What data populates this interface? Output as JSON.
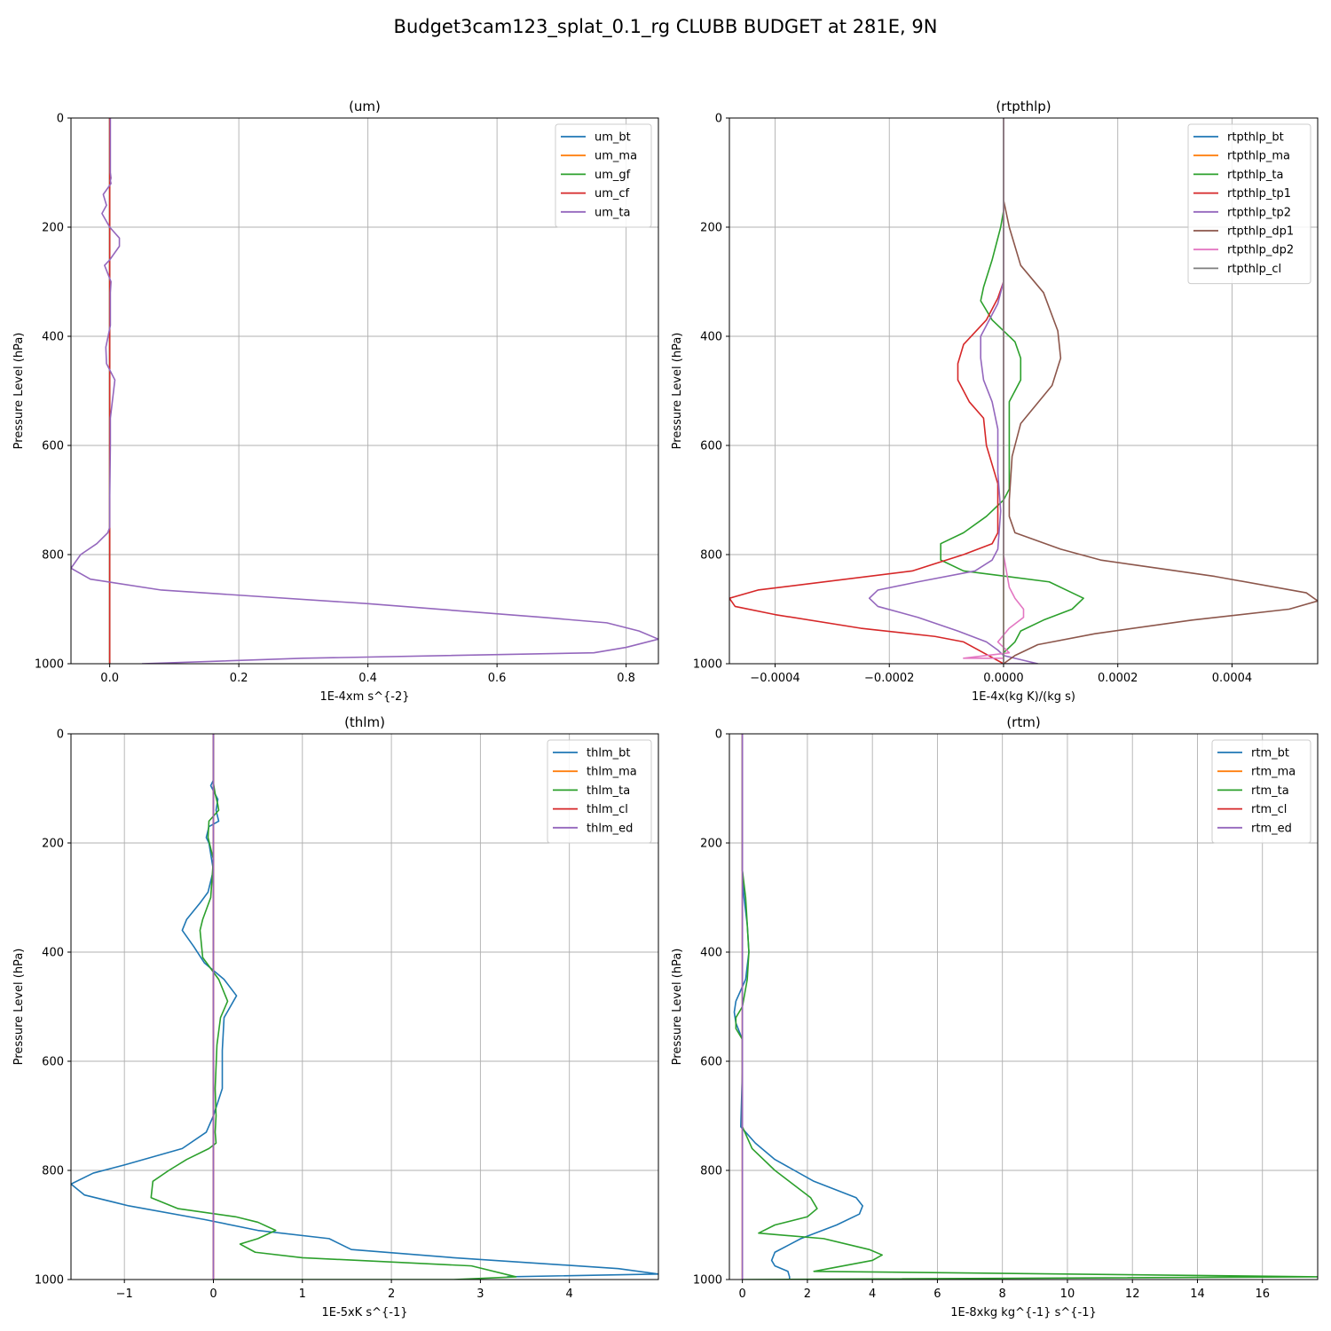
{
  "figure": {
    "title": "Budget3cam123_splat_0.1_rg CLUBB BUDGET at 281E, 9N"
  },
  "chart_data": [
    {
      "type": "line",
      "title": "(um)",
      "xlabel": "1E-4xm s^{-2}",
      "ylabel": "Pressure Level (hPa)",
      "xlim": [
        -0.06,
        0.85
      ],
      "ylim": [
        1000,
        0
      ],
      "xticks": [
        0.0,
        0.2,
        0.4,
        0.6,
        0.8
      ],
      "xtick_labels": [
        "0.0",
        "0.2",
        "0.4",
        "0.6",
        "0.8"
      ],
      "yticks": [
        0,
        200,
        400,
        600,
        800,
        1000
      ],
      "ytick_labels": [
        "0",
        "200",
        "400",
        "600",
        "800",
        "1000"
      ],
      "grid": true,
      "legend_position": "top-right",
      "series": [
        {
          "name": "um_bt",
          "color": "#1f77b4",
          "x": [
            0,
            0
          ],
          "y": [
            0,
            1000
          ]
        },
        {
          "name": "um_ma",
          "color": "#ff7f0e",
          "x": [
            0,
            0
          ],
          "y": [
            0,
            1000
          ]
        },
        {
          "name": "um_gf",
          "color": "#2ca02c",
          "x": [
            0,
            0
          ],
          "y": [
            0,
            1000
          ]
        },
        {
          "name": "um_cf",
          "color": "#d62728",
          "x": [
            0,
            0
          ],
          "y": [
            0,
            1000
          ]
        },
        {
          "name": "um_ta",
          "color": "#9467bd",
          "x": [
            0.001,
            0.001,
            0.001,
            0.002,
            0.001,
            0.002,
            -0.01,
            -0.005,
            -0.012,
            0.0,
            0.015,
            0.015,
            0.0,
            -0.008,
            0.002,
            0.001,
            0.001,
            -0.006,
            -0.005,
            0.008,
            0.001,
            0.001,
            0.0,
            0.0,
            -0.003,
            -0.02,
            -0.045,
            -0.06,
            -0.03,
            0.08,
            0.4,
            0.67,
            0.77,
            0.82,
            0.85,
            0.8,
            0.75,
            0.3,
            0.05
          ],
          "y": [
            0,
            50,
            100,
            110,
            115,
            120,
            140,
            160,
            175,
            200,
            220,
            235,
            260,
            270,
            300,
            320,
            380,
            420,
            450,
            480,
            550,
            600,
            700,
            750,
            760,
            780,
            800,
            825,
            845,
            865,
            890,
            915,
            925,
            940,
            955,
            970,
            980,
            990,
            1000
          ]
        }
      ]
    },
    {
      "type": "line",
      "title": "(rtpthlp)",
      "xlabel": "1E-4x(kg K)/(kg s)",
      "ylabel": "Pressure Level (hPa)",
      "xlim": [
        -0.00048,
        0.00055
      ],
      "ylim": [
        1000,
        0
      ],
      "xticks": [
        -0.0004,
        -0.0002,
        0.0,
        0.0002,
        0.0004
      ],
      "xtick_labels": [
        "−0.0004",
        "−0.0002",
        "0.0000",
        "0.0002",
        "0.0004"
      ],
      "yticks": [
        0,
        200,
        400,
        600,
        800,
        1000
      ],
      "ytick_labels": [
        "0",
        "200",
        "400",
        "600",
        "800",
        "1000"
      ],
      "grid": true,
      "legend_position": "top-right",
      "series": [
        {
          "name": "rtpthlp_bt",
          "color": "#1f77b4",
          "x": [
            0,
            0
          ],
          "y": [
            0,
            1000
          ]
        },
        {
          "name": "rtpthlp_ma",
          "color": "#ff7f0e",
          "x": [
            0,
            0
          ],
          "y": [
            0,
            1000
          ]
        },
        {
          "name": "rtpthlp_ta",
          "color": "#2ca02c",
          "x": [
            0,
            0,
            -5e-06,
            -2e-05,
            -3.5e-05,
            -4e-05,
            -2e-05,
            2e-05,
            3e-05,
            3e-05,
            1e-05,
            1e-05,
            1e-05,
            0.0,
            -3e-05,
            -7e-05,
            -0.00011,
            -0.00011,
            -7e-05,
            8e-05,
            0.00012,
            0.00014,
            0.00012,
            7e-05,
            3e-05,
            2e-05,
            0.0,
            0.0
          ],
          "y": [
            0,
            170,
            200,
            260,
            310,
            335,
            370,
            410,
            440,
            480,
            520,
            600,
            680,
            700,
            730,
            760,
            780,
            810,
            830,
            850,
            870,
            880,
            900,
            920,
            940,
            960,
            980,
            1000
          ]
        },
        {
          "name": "rtpthlp_tp1",
          "color": "#d62728",
          "x": [
            0,
            0,
            -1e-05,
            -3e-05,
            -7e-05,
            -8e-05,
            -8e-05,
            -6e-05,
            -3.5e-05,
            -3e-05,
            -1e-05,
            -1e-05,
            -1e-05,
            -2e-05,
            -7e-05,
            -0.00016,
            -0.00043,
            -0.00048,
            -0.00047,
            -0.0004,
            -0.00025,
            -0.00012,
            -7e-05,
            0.0
          ],
          "y": [
            0,
            300,
            330,
            370,
            415,
            450,
            480,
            520,
            550,
            600,
            670,
            730,
            760,
            780,
            800,
            830,
            865,
            880,
            895,
            910,
            935,
            950,
            960,
            1000
          ]
        },
        {
          "name": "rtpthlp_tp2",
          "color": "#9467bd",
          "x": [
            0,
            0,
            -1e-05,
            -3e-05,
            -4e-05,
            -4e-05,
            -3.5e-05,
            -2e-05,
            -1e-05,
            -1e-05,
            -5e-06,
            -1e-05,
            -2e-05,
            -5e-05,
            -0.00015,
            -0.00022,
            -0.000235,
            -0.00022,
            -0.00015,
            -8e-05,
            -3e-05,
            -1e-05,
            0.0,
            6e-05,
            0.0
          ],
          "y": [
            0,
            300,
            340,
            380,
            400,
            440,
            480,
            520,
            570,
            650,
            720,
            790,
            810,
            830,
            850,
            865,
            880,
            895,
            915,
            940,
            960,
            975,
            985,
            1000,
            1000
          ]
        },
        {
          "name": "rtpthlp_dp1",
          "color": "#8c564b",
          "x": [
            0,
            0,
            1e-05,
            3e-05,
            7e-05,
            9.5e-05,
            0.0001,
            8.5e-05,
            3e-05,
            1.5e-05,
            1e-05,
            1e-05,
            2e-05,
            0.0001,
            0.00017,
            0.00037,
            0.00053,
            0.00055,
            0.0005,
            0.00033,
            0.00016,
            6e-05,
            2e-05,
            0.0
          ],
          "y": [
            0,
            150,
            200,
            270,
            320,
            390,
            440,
            490,
            560,
            620,
            700,
            730,
            760,
            790,
            810,
            840,
            870,
            885,
            900,
            920,
            945,
            965,
            985,
            1000
          ]
        },
        {
          "name": "rtpthlp_dp2",
          "color": "#e377c2",
          "x": [
            0,
            0,
            5e-06,
            1e-05,
            2e-05,
            3.5e-05,
            3.5e-05,
            1e-05,
            -1e-05,
            1e-05,
            -7e-05,
            0.0,
            0.0
          ],
          "y": [
            0,
            800,
            830,
            860,
            880,
            900,
            915,
            935,
            960,
            980,
            990,
            990,
            1000
          ]
        },
        {
          "name": "rtpthlp_cl",
          "color": "#7f7f7f",
          "x": [
            0,
            0
          ],
          "y": [
            0,
            1000
          ]
        }
      ]
    },
    {
      "type": "line",
      "title": "(thlm)",
      "xlabel": "1E-5xK s^{-1}",
      "ylabel": "Pressure Level (hPa)",
      "xlim": [
        -1.6,
        5.0
      ],
      "ylim": [
        1000,
        0
      ],
      "xticks": [
        -1,
        0,
        1,
        2,
        3,
        4
      ],
      "xtick_labels": [
        "−1",
        "0",
        "1",
        "2",
        "3",
        "4"
      ],
      "yticks": [
        0,
        200,
        400,
        600,
        800,
        1000
      ],
      "ytick_labels": [
        "0",
        "200",
        "400",
        "600",
        "800",
        "1000"
      ],
      "grid": true,
      "legend_position": "top-right",
      "series": [
        {
          "name": "thlm_bt",
          "color": "#1f77b4",
          "x": [
            0,
            0,
            -0.03,
            0.05,
            0.03,
            0.06,
            -0.05,
            -0.08,
            -0.05,
            0.0,
            -0.06,
            -0.15,
            -0.3,
            -0.35,
            -0.22,
            -0.1,
            0.12,
            0.26,
            0.12,
            0.1,
            0.1,
            0.0,
            -0.08,
            -0.35,
            -1.0,
            -1.35,
            -1.6,
            -1.45,
            -0.95,
            -0.1,
            0.5,
            1.3,
            1.55,
            2.7,
            4.55,
            5.0,
            3.3
          ],
          "y": [
            0,
            85,
            95,
            120,
            140,
            160,
            170,
            190,
            200,
            250,
            290,
            310,
            340,
            360,
            390,
            420,
            450,
            480,
            520,
            580,
            650,
            700,
            730,
            760,
            790,
            805,
            825,
            845,
            865,
            890,
            910,
            925,
            945,
            960,
            980,
            990,
            995
          ]
        },
        {
          "name": "thlm_ma",
          "color": "#ff7f0e",
          "x": [
            0,
            0
          ],
          "y": [
            0,
            1000
          ]
        },
        {
          "name": "thlm_ta",
          "color": "#2ca02c",
          "x": [
            0,
            0,
            0.02,
            0.05,
            0.06,
            -0.05,
            -0.06,
            0.0,
            -0.03,
            -0.12,
            -0.15,
            -0.12,
            0.06,
            0.16,
            0.08,
            0.04,
            0.02,
            0.03,
            0.02,
            0.03,
            -0.05,
            -0.3,
            -0.5,
            -0.68,
            -0.7,
            -0.4,
            0.25,
            0.5,
            0.7,
            0.5,
            0.3,
            0.47,
            1.0,
            2.9,
            3.4,
            2.7,
            0.0
          ],
          "y": [
            0,
            90,
            110,
            130,
            140,
            160,
            190,
            230,
            300,
            340,
            360,
            410,
            450,
            490,
            520,
            570,
            650,
            700,
            730,
            750,
            760,
            780,
            800,
            820,
            850,
            870,
            885,
            895,
            910,
            925,
            935,
            950,
            960,
            975,
            995,
            1000,
            1000
          ]
        },
        {
          "name": "thlm_cl",
          "color": "#d62728",
          "x": [
            0,
            0
          ],
          "y": [
            0,
            1000
          ]
        },
        {
          "name": "thlm_ed",
          "color": "#9467bd",
          "x": [
            0,
            0
          ],
          "y": [
            0,
            1000
          ]
        }
      ]
    },
    {
      "type": "line",
      "title": "(rtm)",
      "xlabel": "1E-8xkg kg^{-1} s^{-1}",
      "ylabel": "Pressure Level (hPa)",
      "xlim": [
        -0.4,
        17.7
      ],
      "ylim": [
        1000,
        0
      ],
      "xticks": [
        0,
        2,
        4,
        6,
        8,
        10,
        12,
        14,
        16
      ],
      "xtick_labels": [
        "0",
        "2",
        "4",
        "6",
        "8",
        "10",
        "12",
        "14",
        "16"
      ],
      "yticks": [
        0,
        200,
        400,
        600,
        800,
        1000
      ],
      "ytick_labels": [
        "0",
        "200",
        "400",
        "600",
        "800",
        "1000"
      ],
      "grid": true,
      "legend_position": "top-right",
      "series": [
        {
          "name": "rtm_bt",
          "color": "#1f77b4",
          "x": [
            0,
            0,
            0.05,
            0.15,
            0.2,
            0.1,
            -0.2,
            -0.25,
            -0.2,
            0.0,
            0.0,
            -0.05,
            0.1,
            0.4,
            1.0,
            2.2,
            3.5,
            3.7,
            3.6,
            2.9,
            1.8,
            1.0,
            0.9,
            1.0,
            1.4,
            1.45,
            1.45
          ],
          "y": [
            0,
            250,
            300,
            350,
            400,
            450,
            490,
            510,
            530,
            560,
            620,
            720,
            730,
            750,
            780,
            820,
            850,
            865,
            880,
            900,
            925,
            950,
            965,
            975,
            985,
            995,
            1000
          ]
        },
        {
          "name": "rtm_ma",
          "color": "#ff7f0e",
          "x": [
            0,
            0
          ],
          "y": [
            0,
            1000
          ]
        },
        {
          "name": "rtm_ta",
          "color": "#2ca02c",
          "x": [
            0,
            0,
            0.1,
            0.15,
            0.2,
            0.15,
            0.0,
            -0.2,
            -0.2,
            0.0,
            0.0,
            0.0,
            0.3,
            1.0,
            2.1,
            2.3,
            2.0,
            1.0,
            0.5,
            2.5,
            3.9,
            4.3,
            4.0,
            2.2,
            17.7,
            0.0
          ],
          "y": [
            0,
            250,
            300,
            350,
            400,
            450,
            500,
            520,
            540,
            560,
            620,
            720,
            760,
            800,
            850,
            870,
            885,
            900,
            915,
            925,
            945,
            955,
            965,
            985,
            995,
            1000
          ]
        },
        {
          "name": "rtm_cl",
          "color": "#d62728",
          "x": [
            0,
            0
          ],
          "y": [
            0,
            1000
          ]
        },
        {
          "name": "rtm_ed",
          "color": "#9467bd",
          "x": [
            0,
            0
          ],
          "y": [
            0,
            1000
          ]
        }
      ]
    }
  ]
}
